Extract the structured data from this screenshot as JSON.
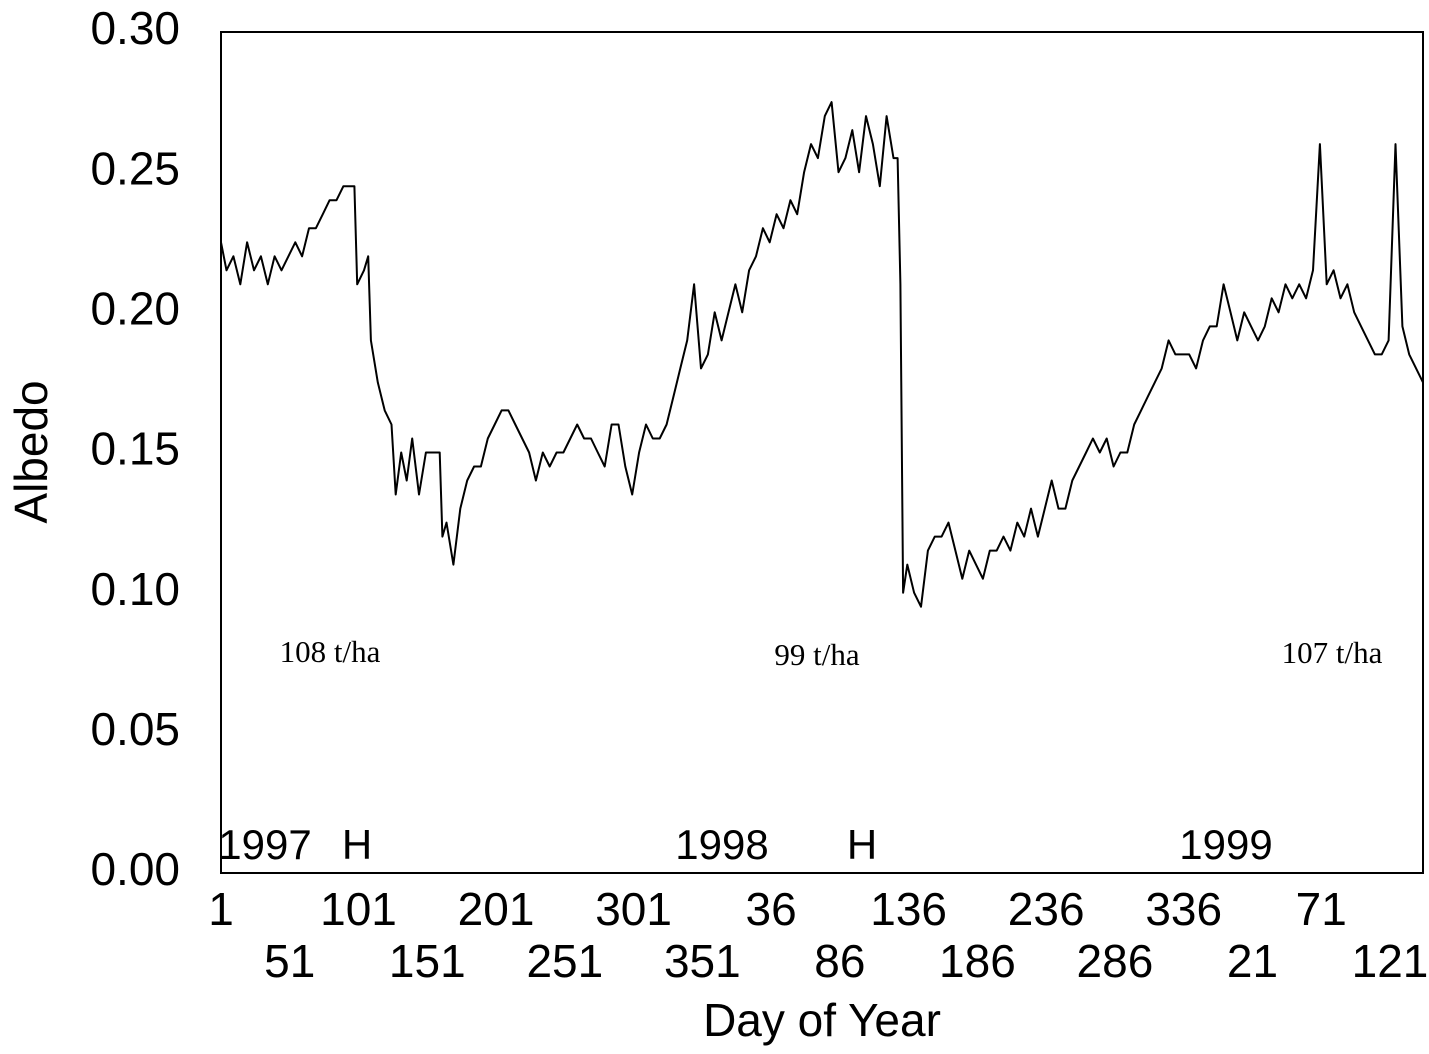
{
  "chart_data": {
    "type": "line",
    "ylabel": "Albedo",
    "xlabel": "Day of Year",
    "annotations": [
      "1997",
      "H",
      "1998",
      "H",
      "1999",
      "108 t/ha",
      "99 t/ha",
      "107 t/ha"
    ],
    "color": "#000000",
    "x": [
      1,
      5,
      10,
      15,
      20,
      25,
      30,
      35,
      40,
      45,
      50,
      55,
      60,
      65,
      70,
      75,
      80,
      85,
      90,
      95,
      98,
      100,
      105,
      108,
      110,
      115,
      120,
      125,
      128,
      132,
      136,
      140,
      145,
      150,
      155,
      160,
      162,
      165,
      170,
      175,
      180,
      185,
      190,
      195,
      200,
      205,
      210,
      215,
      220,
      225,
      230,
      235,
      240,
      245,
      250,
      255,
      260,
      265,
      270,
      275,
      280,
      285,
      290,
      295,
      300,
      305,
      310,
      315,
      320,
      325,
      330,
      335,
      340,
      345,
      350,
      355,
      360,
      365,
      370,
      375,
      380,
      385,
      390,
      395,
      400,
      405,
      410,
      415,
      420,
      425,
      430,
      435,
      440,
      445,
      450,
      455,
      460,
      465,
      470,
      475,
      480,
      485,
      490,
      493,
      495,
      497,
      500,
      505,
      510,
      515,
      520,
      525,
      530,
      535,
      540,
      545,
      550,
      555,
      560,
      565,
      570,
      575,
      580,
      585,
      590,
      595,
      600,
      605,
      610,
      615,
      620,
      625,
      630,
      635,
      640,
      645,
      650,
      655,
      660,
      665,
      670,
      675,
      680,
      685,
      690,
      695,
      700,
      705,
      710,
      715,
      720,
      725,
      730,
      735,
      740,
      745,
      750,
      755,
      760,
      765,
      770,
      775,
      780,
      785,
      790,
      795,
      800,
      805,
      810,
      815,
      820,
      825,
      830,
      835,
      840,
      845,
      850,
      855,
      860,
      865,
      870,
      875
    ],
    "values": [
      0.225,
      0.215,
      0.22,
      0.21,
      0.225,
      0.215,
      0.22,
      0.21,
      0.22,
      0.215,
      0.22,
      0.225,
      0.22,
      0.23,
      0.23,
      0.235,
      0.24,
      0.24,
      0.245,
      0.245,
      0.245,
      0.21,
      0.215,
      0.22,
      0.19,
      0.175,
      0.165,
      0.16,
      0.135,
      0.15,
      0.14,
      0.155,
      0.135,
      0.15,
      0.15,
      0.15,
      0.12,
      0.125,
      0.11,
      0.13,
      0.14,
      0.145,
      0.145,
      0.155,
      0.16,
      0.165,
      0.165,
      0.16,
      0.155,
      0.15,
      0.14,
      0.15,
      0.145,
      0.15,
      0.15,
      0.155,
      0.16,
      0.155,
      0.155,
      0.15,
      0.145,
      0.16,
      0.16,
      0.145,
      0.135,
      0.15,
      0.16,
      0.155,
      0.155,
      0.16,
      0.17,
      0.18,
      0.19,
      0.21,
      0.18,
      0.185,
      0.2,
      0.19,
      0.2,
      0.21,
      0.2,
      0.215,
      0.22,
      0.23,
      0.225,
      0.235,
      0.23,
      0.24,
      0.235,
      0.25,
      0.26,
      0.255,
      0.27,
      0.275,
      0.25,
      0.255,
      0.265,
      0.25,
      0.27,
      0.26,
      0.245,
      0.27,
      0.255,
      0.255,
      0.21,
      0.1,
      0.11,
      0.1,
      0.095,
      0.115,
      0.12,
      0.12,
      0.125,
      0.115,
      0.105,
      0.115,
      0.11,
      0.105,
      0.115,
      0.115,
      0.12,
      0.115,
      0.125,
      0.12,
      0.13,
      0.12,
      0.13,
      0.14,
      0.13,
      0.13,
      0.14,
      0.145,
      0.15,
      0.155,
      0.15,
      0.155,
      0.145,
      0.15,
      0.15,
      0.16,
      0.165,
      0.17,
      0.175,
      0.18,
      0.19,
      0.185,
      0.185,
      0.185,
      0.18,
      0.19,
      0.195,
      0.195,
      0.21,
      0.2,
      0.19,
      0.2,
      0.195,
      0.19,
      0.195,
      0.205,
      0.2,
      0.21,
      0.205,
      0.21,
      0.205,
      0.215,
      0.26,
      0.21,
      0.215,
      0.205,
      0.21,
      0.2,
      0.195,
      0.19,
      0.185,
      0.185,
      0.19,
      0.26,
      0.195,
      0.185,
      0.18,
      0.175
    ],
    "xlim": [
      1,
      875
    ],
    "xticks": [
      1,
      51,
      101,
      151,
      201,
      251,
      301,
      351,
      {
        "value": 401,
        "label": "36"
      },
      {
        "value": 451,
        "label": "86"
      },
      {
        "value": 501,
        "label": "136"
      },
      {
        "value": 551,
        "label": "186"
      },
      {
        "value": 601,
        "label": "236"
      },
      {
        "value": 651,
        "label": "286"
      },
      {
        "value": 701,
        "label": "336"
      },
      {
        "value": 751,
        "label": "21"
      },
      {
        "value": 801,
        "label": "71"
      },
      {
        "value": 851,
        "label": "121"
      }
    ],
    "ylim": [
      0,
      0.3
    ],
    "yticks": [
      {
        "value": 0,
        "label": "0.00"
      },
      {
        "value": 0.05,
        "label": "0.05"
      },
      {
        "value": 0.1,
        "label": "0.10"
      },
      {
        "value": 0.15,
        "label": "0.15"
      },
      {
        "value": 0.2,
        "label": "0.20"
      },
      {
        "value": 0.25,
        "label": "0.25"
      },
      {
        "value": 0.3,
        "label": "0.30"
      }
    ],
    "grid": false
  }
}
